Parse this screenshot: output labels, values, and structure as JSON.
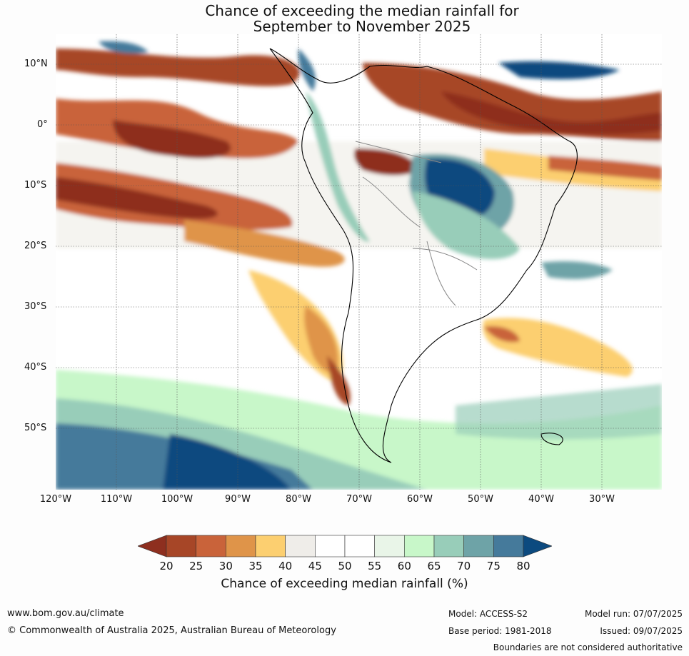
{
  "title": {
    "line1": "Chance of exceeding the median rainfall for",
    "line2": "September to November 2025"
  },
  "axes": {
    "lat_labels": [
      "10°N",
      "0°",
      "10°S",
      "20°S",
      "30°S",
      "40°S",
      "50°S"
    ],
    "lon_labels": [
      "120°W",
      "110°W",
      "100°W",
      "90°W",
      "80°W",
      "70°W",
      "60°W",
      "50°W",
      "40°W",
      "30°W"
    ]
  },
  "colorbar": {
    "ticks": [
      "20",
      "25",
      "30",
      "35",
      "40",
      "45",
      "50",
      "55",
      "60",
      "65",
      "70",
      "75",
      "80"
    ],
    "colors": [
      "#8e2f1f",
      "#a74627",
      "#c9633a",
      "#df9449",
      "#fccf70",
      "#efede9",
      "#ffffff",
      "#ffffff",
      "#e9f5e8",
      "#c8f7c9",
      "#98cdb9",
      "#6ea3a7",
      "#457a9b",
      "#0c4a7f"
    ],
    "label": "Chance of exceeding median rainfall (%)"
  },
  "footer": {
    "url": "www.bom.gov.au/climate",
    "copyright": "© Commonwealth of Australia 2025, Australian Bureau of Meteorology",
    "model": "Model: ACCESS-S2",
    "base_period": "Base period: 1981-2018",
    "model_run": "Model run: 07/07/2025",
    "issued": "Issued: 09/07/2025",
    "disclaimer": "Boundaries are not considered authoritative"
  }
}
